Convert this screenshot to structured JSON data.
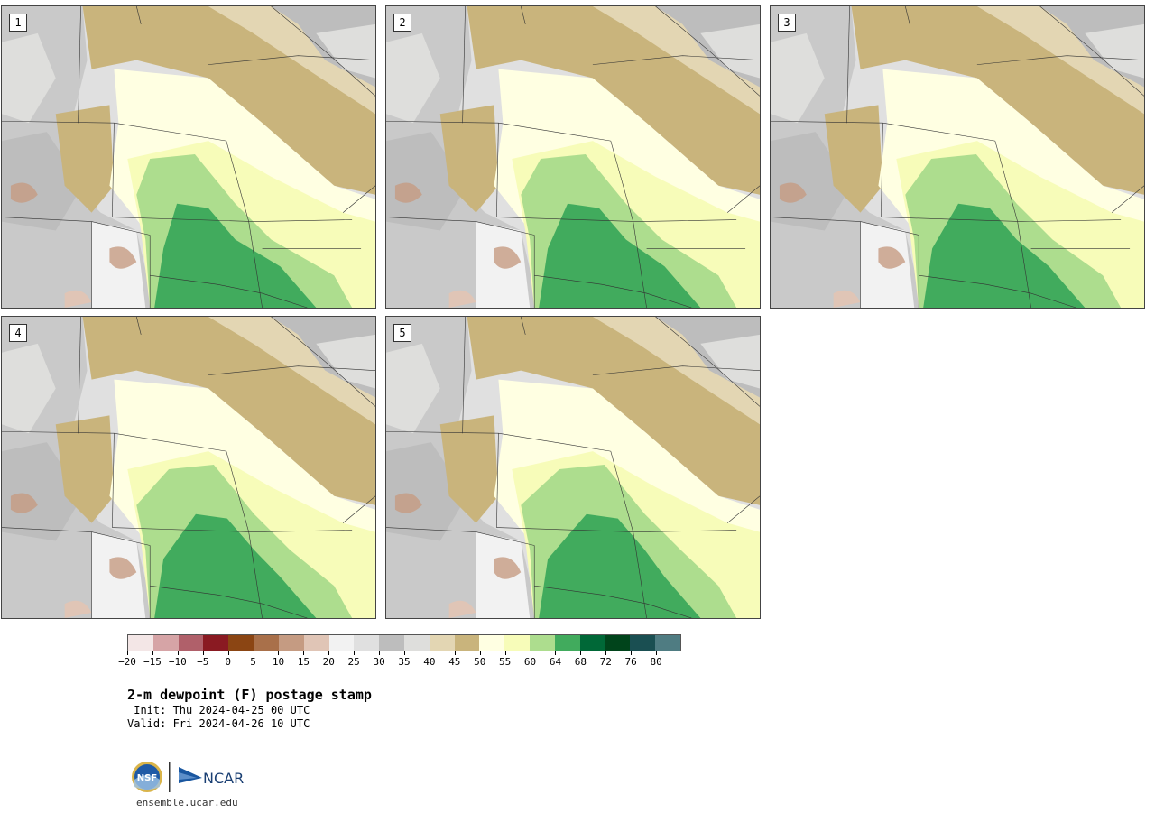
{
  "panels": [
    {
      "label": "1"
    },
    {
      "label": "2"
    },
    {
      "label": "3"
    },
    {
      "label": "4"
    },
    {
      "label": "5"
    }
  ],
  "colorbar": {
    "colors": [
      "#f3e6e6",
      "#d6a4a6",
      "#b0606a",
      "#8a1a22",
      "#8b4513",
      "#a9704a",
      "#c59b82",
      "#e0c5b6",
      "#f2f2f2",
      "#e0e0e0",
      "#bdbdbd",
      "#dededc",
      "#e3d6b3",
      "#c9b47c",
      "#ffffe2",
      "#f7fcb9",
      "#addd8e",
      "#41ab5d",
      "#006837",
      "#00441b",
      "#1a4f52",
      "#4f7c82"
    ],
    "ticks": [
      "−20",
      "−15",
      "−10",
      "−5",
      "0",
      "5",
      "10",
      "15",
      "20",
      "25",
      "30",
      "35",
      "40",
      "45",
      "50",
      "55",
      "60",
      "64",
      "68",
      "72",
      "76",
      "80"
    ]
  },
  "title": {
    "main": "2-m dewpoint (F) postage stamp",
    "init": " Init: Thu 2024-04-25 00 UTC",
    "valid": "Valid: Fri 2024-04-26 10 UTC"
  },
  "logos": {
    "nsf_text": "NSF",
    "ncar_text": "NCAR"
  },
  "footer": {
    "site": "ensemble.ucar.edu"
  }
}
